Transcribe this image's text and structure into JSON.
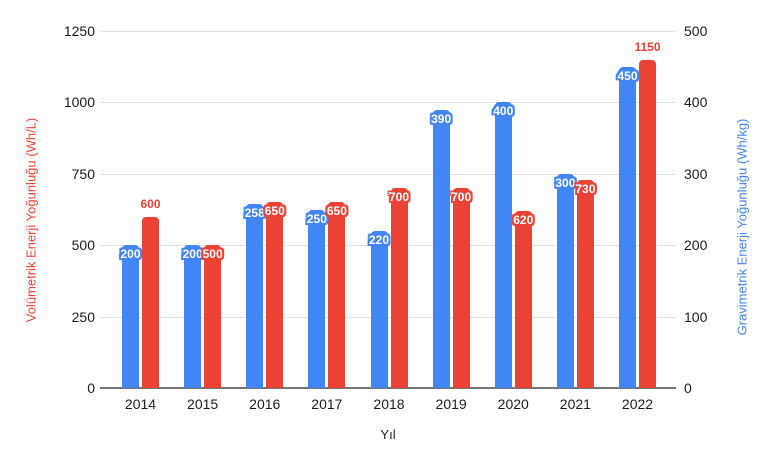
{
  "chart_data": {
    "type": "bar",
    "title": "",
    "xlabel": "Yıl",
    "categories": [
      "2014",
      "2015",
      "2016",
      "2017",
      "2018",
      "2019",
      "2020",
      "2021",
      "2022"
    ],
    "series": [
      {
        "name": "Gravimetrik Enerji Yoğunluğu (Wh/kg)",
        "axis": "right",
        "color": "#4285F4",
        "values": [
          200,
          200,
          258,
          250,
          220,
          390,
          400,
          300,
          450
        ],
        "label_positions": [
          "inside",
          "inside",
          "inside",
          "inside",
          "inside",
          "inside",
          "inside",
          "inside",
          "inside"
        ]
      },
      {
        "name": "Volümetrik Enerji Yoğunluğu (Wh/L)",
        "axis": "left",
        "color": "#EA4335",
        "values": [
          600,
          500,
          650,
          650,
          700,
          700,
          620,
          730,
          1150
        ],
        "label_positions": [
          "above",
          "inside",
          "inside",
          "inside",
          "inside",
          "inside",
          "inside",
          "inside",
          "above"
        ]
      }
    ],
    "left_axis": {
      "title": "Volümetrik Enerji Yoğunluğu (Wh/L)",
      "color": "#EA4335",
      "min": 0,
      "max": 1250,
      "ticks": [
        0,
        250,
        500,
        750,
        1000,
        1250
      ]
    },
    "right_axis": {
      "title": "Gravimetrik Enerji Yoğunluğu (Wh/kg)",
      "color": "#4285F4",
      "min": 0,
      "max": 500,
      "ticks": [
        0,
        100,
        200,
        300,
        400,
        500
      ]
    },
    "grid": true,
    "legend": "none",
    "background": "#ffffff",
    "gridline_color": "#e0e0e0",
    "baseline_color": "#757575",
    "tick_label_color": "#1b1b1b"
  }
}
